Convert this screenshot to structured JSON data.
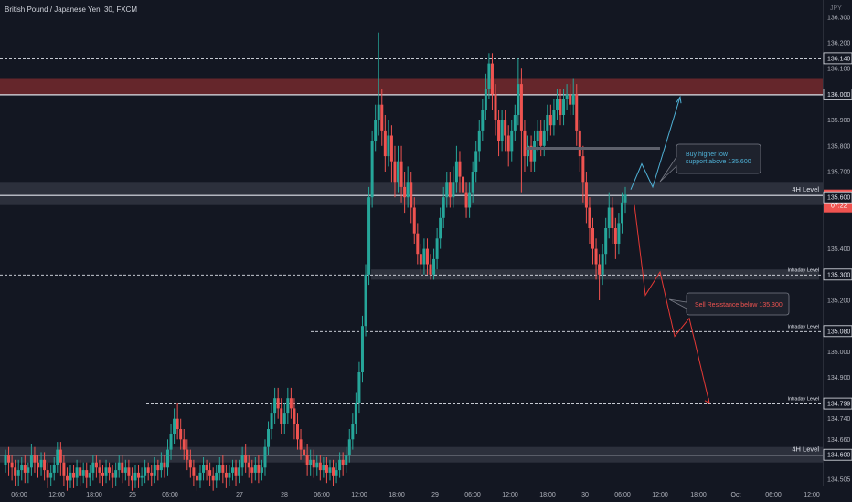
{
  "header": {
    "title": "British Pound / Japanese Yen, 30, FXCM",
    "currency": "JPY"
  },
  "colors": {
    "background": "#131722",
    "up": "#26a69a",
    "down": "#ef5350",
    "zone": "#363a45",
    "resistance_zone": "#7a2a2e",
    "bull_projection": "#4fb1d6",
    "bear_projection": "#e53935",
    "axis_text": "#b2b5be"
  },
  "chart_data": {
    "type": "candlestick",
    "title": "British Pound / Japanese Yen, 30, FXCM",
    "ylim": [
      134.5,
      136.32
    ],
    "x_tick_labels": [
      "06:00",
      "12:00",
      "18:00",
      "25",
      "06:00",
      "27",
      "28",
      "06:00",
      "12:00",
      "18:00",
      "29",
      "06:00",
      "12:00",
      "18:00",
      "30",
      "06:00",
      "12:00",
      "18:00",
      "Oct",
      "06:00",
      "12:00"
    ],
    "y_tick_labels": [
      "136.300",
      "136.200",
      "136.100",
      "135.900",
      "135.800",
      "135.700",
      "135.400",
      "135.200",
      "135.000",
      "134.900",
      "134.740",
      "134.660",
      "134.505"
    ],
    "price_labels": [
      {
        "value": 136.14,
        "text": "136.140",
        "style": "boxed"
      },
      {
        "value": 136.0,
        "text": "136.000",
        "style": "boxed"
      },
      {
        "value": 135.609,
        "text": "135.609",
        "countdown": "07:22",
        "style": "current"
      },
      {
        "value": 135.6,
        "text": "135.600",
        "style": "boxed"
      },
      {
        "value": 135.3,
        "text": "135.300",
        "style": "boxed"
      },
      {
        "value": 135.08,
        "text": "135.080",
        "style": "boxed"
      },
      {
        "value": 134.799,
        "text": "134.799",
        "style": "boxed"
      },
      {
        "value": 134.6,
        "text": "134.600",
        "style": "boxed"
      }
    ],
    "levels": [
      {
        "value": 136.14,
        "style": "dashed",
        "label": ""
      },
      {
        "value": 136.0,
        "style": "solid",
        "label": ""
      },
      {
        "value": 135.609,
        "style": "solid",
        "label": "4H Level"
      },
      {
        "value": 135.3,
        "style": "dashed",
        "label": "Intraday Level"
      },
      {
        "value": 135.08,
        "style": "dashed",
        "label": "Intraday Level"
      },
      {
        "value": 134.799,
        "style": "dashed",
        "label": "Intraday Level"
      },
      {
        "value": 134.6,
        "style": "solid",
        "label": "4H Level"
      }
    ],
    "zones": [
      {
        "from": 136.0,
        "to": 136.06,
        "kind": "resistance"
      },
      {
        "from": 135.57,
        "to": 135.66,
        "kind": "4h"
      },
      {
        "from": 135.28,
        "to": 135.32,
        "kind": "intraday"
      },
      {
        "from": 134.57,
        "to": 134.63,
        "kind": "4h"
      }
    ],
    "annotations": [
      {
        "text": "Buy higher low support above 135.600",
        "lines": [
          "Buy higher low",
          "support above 135.600"
        ],
        "color": "#4fb1d6"
      },
      {
        "text": "Sell Resistance below 135.300",
        "lines": [
          "Sell Resistance below 135.300"
        ],
        "color": "#ef5350"
      }
    ],
    "projections": {
      "bull": [
        [
          135.63,
          0
        ],
        [
          135.73,
          1
        ],
        [
          135.64,
          2
        ],
        [
          135.99,
          3
        ]
      ],
      "bear": [
        [
          135.57,
          0
        ],
        [
          135.22,
          1
        ],
        [
          135.31,
          2
        ],
        [
          135.06,
          3
        ],
        [
          135.13,
          4
        ],
        [
          134.8,
          5
        ]
      ]
    },
    "candles": [
      [
        134.56,
        134.6,
        134.53,
        134.62
      ],
      [
        134.6,
        134.57,
        134.52,
        134.63
      ],
      [
        134.57,
        134.55,
        134.5,
        134.6
      ],
      [
        134.55,
        134.52,
        134.48,
        134.58
      ],
      [
        134.52,
        134.54,
        134.48,
        134.58
      ],
      [
        134.54,
        134.56,
        134.5,
        134.59
      ],
      [
        134.56,
        134.53,
        134.49,
        134.6
      ],
      [
        134.53,
        134.55,
        134.49,
        134.57
      ],
      [
        134.55,
        134.6,
        134.52,
        134.64
      ],
      [
        134.6,
        134.57,
        134.53,
        134.63
      ],
      [
        134.57,
        134.55,
        134.51,
        134.6
      ],
      [
        134.55,
        134.58,
        134.52,
        134.61
      ],
      [
        134.58,
        134.54,
        134.5,
        134.61
      ],
      [
        134.54,
        134.51,
        134.47,
        134.57
      ],
      [
        134.51,
        134.53,
        134.48,
        134.56
      ],
      [
        134.53,
        134.56,
        134.5,
        134.59
      ],
      [
        134.56,
        134.62,
        134.53,
        134.65
      ],
      [
        134.62,
        134.57,
        134.52,
        134.65
      ],
      [
        134.57,
        134.52,
        134.48,
        134.6
      ],
      [
        134.52,
        134.5,
        134.46,
        134.55
      ],
      [
        134.5,
        134.53,
        134.47,
        134.56
      ],
      [
        134.53,
        134.51,
        134.47,
        134.56
      ],
      [
        134.51,
        134.55,
        134.48,
        134.58
      ],
      [
        134.55,
        134.52,
        134.48,
        134.58
      ],
      [
        134.52,
        134.54,
        134.49,
        134.57
      ],
      [
        134.54,
        134.51,
        134.47,
        134.57
      ],
      [
        134.51,
        134.53,
        134.48,
        134.56
      ],
      [
        134.53,
        134.57,
        134.5,
        134.6
      ],
      [
        134.57,
        134.55,
        134.51,
        134.6
      ],
      [
        134.55,
        134.53,
        134.49,
        134.58
      ],
      [
        134.53,
        134.52,
        134.48,
        134.56
      ],
      [
        134.52,
        134.55,
        134.49,
        134.58
      ],
      [
        134.55,
        134.53,
        134.5,
        134.57
      ],
      [
        134.53,
        134.51,
        134.47,
        134.56
      ],
      [
        134.51,
        134.54,
        134.48,
        134.57
      ],
      [
        134.54,
        134.57,
        134.51,
        134.6
      ],
      [
        134.57,
        134.53,
        134.49,
        134.6
      ],
      [
        134.53,
        134.55,
        134.5,
        134.58
      ],
      [
        134.55,
        134.52,
        134.48,
        134.58
      ],
      [
        134.52,
        134.5,
        134.46,
        134.55
      ],
      [
        134.5,
        134.53,
        134.47,
        134.56
      ],
      [
        134.53,
        134.51,
        134.47,
        134.56
      ],
      [
        134.51,
        134.52,
        134.48,
        134.55
      ],
      [
        134.52,
        134.55,
        134.49,
        134.58
      ],
      [
        134.55,
        134.53,
        134.5,
        134.57
      ],
      [
        134.53,
        134.52,
        134.48,
        134.56
      ],
      [
        134.52,
        134.56,
        134.49,
        134.59
      ],
      [
        134.56,
        134.54,
        134.5,
        134.58
      ],
      [
        134.54,
        134.57,
        134.51,
        134.61
      ],
      [
        134.57,
        134.55,
        134.51,
        134.6
      ],
      [
        134.55,
        134.62,
        134.52,
        134.66
      ],
      [
        134.62,
        134.68,
        134.58,
        134.72
      ],
      [
        134.68,
        134.74,
        134.64,
        134.78
      ],
      [
        134.74,
        134.7,
        134.66,
        134.8
      ],
      [
        134.7,
        134.66,
        134.62,
        134.74
      ],
      [
        134.66,
        134.62,
        134.58,
        134.7
      ],
      [
        134.62,
        134.58,
        134.54,
        134.66
      ],
      [
        134.58,
        134.55,
        134.51,
        134.62
      ],
      [
        134.55,
        134.52,
        134.48,
        134.58
      ],
      [
        134.52,
        134.5,
        134.46,
        134.55
      ],
      [
        134.5,
        134.53,
        134.47,
        134.56
      ],
      [
        134.53,
        134.56,
        134.5,
        134.59
      ],
      [
        134.56,
        134.54,
        134.5,
        134.58
      ],
      [
        134.54,
        134.52,
        134.48,
        134.57
      ],
      [
        134.52,
        134.5,
        134.46,
        134.55
      ],
      [
        134.5,
        134.53,
        134.47,
        134.56
      ],
      [
        134.53,
        134.56,
        134.5,
        134.59
      ],
      [
        134.56,
        134.53,
        134.49,
        134.6
      ],
      [
        134.53,
        134.51,
        134.47,
        134.56
      ],
      [
        134.51,
        134.53,
        134.48,
        134.56
      ],
      [
        134.53,
        134.55,
        134.5,
        134.58
      ],
      [
        134.55,
        134.52,
        134.48,
        134.58
      ],
      [
        134.52,
        134.55,
        134.49,
        134.58
      ],
      [
        134.55,
        134.6,
        134.52,
        134.63
      ],
      [
        134.6,
        134.57,
        134.53,
        134.64
      ],
      [
        134.57,
        134.55,
        134.51,
        134.6
      ],
      [
        134.55,
        134.53,
        134.49,
        134.58
      ],
      [
        134.53,
        134.56,
        134.5,
        134.59
      ],
      [
        134.56,
        134.53,
        134.49,
        134.6
      ],
      [
        134.53,
        134.55,
        134.5,
        134.58
      ],
      [
        134.55,
        134.63,
        134.52,
        134.66
      ],
      [
        134.63,
        134.7,
        134.6,
        134.73
      ],
      [
        134.7,
        134.76,
        134.66,
        134.8
      ],
      [
        134.76,
        134.82,
        134.72,
        134.86
      ],
      [
        134.82,
        134.78,
        134.74,
        134.86
      ],
      [
        134.78,
        134.72,
        134.68,
        134.82
      ],
      [
        134.72,
        134.76,
        134.68,
        134.8
      ],
      [
        134.76,
        134.82,
        134.72,
        134.86
      ],
      [
        134.82,
        134.78,
        134.74,
        134.86
      ],
      [
        134.78,
        134.72,
        134.66,
        134.82
      ],
      [
        134.72,
        134.66,
        134.62,
        134.76
      ],
      [
        134.66,
        134.62,
        134.58,
        134.7
      ],
      [
        134.62,
        134.6,
        134.56,
        134.65
      ],
      [
        134.6,
        134.56,
        134.52,
        134.64
      ],
      [
        134.56,
        134.58,
        134.52,
        134.62
      ],
      [
        134.58,
        134.55,
        134.51,
        134.62
      ],
      [
        134.55,
        134.57,
        134.52,
        134.6
      ],
      [
        134.57,
        134.54,
        134.5,
        134.6
      ],
      [
        134.54,
        134.56,
        134.51,
        134.59
      ],
      [
        134.56,
        134.53,
        134.49,
        134.59
      ],
      [
        134.53,
        134.55,
        134.5,
        134.58
      ],
      [
        134.55,
        134.52,
        134.48,
        134.58
      ],
      [
        134.52,
        134.54,
        134.49,
        134.57
      ],
      [
        134.54,
        134.58,
        134.51,
        134.61
      ],
      [
        134.58,
        134.56,
        134.52,
        134.61
      ],
      [
        134.56,
        134.6,
        134.53,
        134.63
      ],
      [
        134.6,
        134.66,
        134.57,
        134.7
      ],
      [
        134.66,
        134.72,
        134.62,
        134.76
      ],
      [
        134.72,
        134.8,
        134.68,
        134.84
      ],
      [
        134.8,
        134.92,
        134.76,
        134.96
      ],
      [
        134.92,
        135.1,
        134.88,
        135.14
      ],
      [
        135.1,
        135.3,
        135.06,
        135.34
      ],
      [
        135.3,
        135.6,
        135.26,
        135.64
      ],
      [
        135.6,
        135.82,
        135.56,
        135.86
      ],
      [
        135.82,
        135.9,
        135.78,
        135.96
      ],
      [
        135.9,
        135.96,
        135.84,
        136.24
      ],
      [
        135.96,
        135.86,
        135.8,
        136.02
      ],
      [
        135.86,
        135.76,
        135.7,
        135.92
      ],
      [
        135.76,
        135.84,
        135.72,
        135.9
      ],
      [
        135.84,
        135.74,
        135.66,
        135.88
      ],
      [
        135.74,
        135.66,
        135.6,
        135.8
      ],
      [
        135.66,
        135.74,
        135.62,
        135.8
      ],
      [
        135.74,
        135.64,
        135.58,
        135.8
      ],
      [
        135.64,
        135.6,
        135.54,
        135.7
      ],
      [
        135.6,
        135.66,
        135.56,
        135.72
      ],
      [
        135.66,
        135.56,
        135.5,
        135.7
      ],
      [
        135.56,
        135.46,
        135.42,
        135.6
      ],
      [
        135.46,
        135.38,
        135.34,
        135.5
      ],
      [
        135.38,
        135.34,
        135.3,
        135.42
      ],
      [
        135.34,
        135.4,
        135.3,
        135.44
      ],
      [
        135.4,
        135.34,
        135.3,
        135.44
      ],
      [
        135.34,
        135.3,
        135.28,
        135.38
      ],
      [
        135.3,
        135.36,
        135.28,
        135.4
      ],
      [
        135.36,
        135.44,
        135.32,
        135.48
      ],
      [
        135.44,
        135.52,
        135.4,
        135.56
      ],
      [
        135.52,
        135.6,
        135.48,
        135.64
      ],
      [
        135.6,
        135.66,
        135.56,
        135.7
      ],
      [
        135.66,
        135.6,
        135.56,
        135.7
      ],
      [
        135.6,
        135.66,
        135.56,
        135.72
      ],
      [
        135.66,
        135.74,
        135.62,
        135.8
      ],
      [
        135.74,
        135.68,
        135.62,
        135.78
      ],
      [
        135.68,
        135.62,
        135.58,
        135.72
      ],
      [
        135.62,
        135.56,
        135.52,
        135.66
      ],
      [
        135.56,
        135.62,
        135.52,
        135.66
      ],
      [
        135.62,
        135.7,
        135.58,
        135.74
      ],
      [
        135.7,
        135.78,
        135.66,
        135.82
      ],
      [
        135.78,
        135.86,
        135.74,
        135.9
      ],
      [
        135.86,
        135.94,
        135.82,
        135.98
      ],
      [
        135.94,
        136.02,
        135.9,
        136.08
      ],
      [
        136.02,
        136.12,
        135.98,
        136.16
      ],
      [
        136.12,
        136.0,
        135.94,
        136.16
      ],
      [
        136.0,
        135.9,
        135.84,
        136.04
      ],
      [
        135.9,
        135.82,
        135.76,
        135.94
      ],
      [
        135.82,
        135.9,
        135.78,
        135.94
      ],
      [
        135.9,
        135.84,
        135.78,
        135.94
      ],
      [
        135.84,
        135.78,
        135.72,
        135.88
      ],
      [
        135.78,
        135.86,
        135.74,
        135.9
      ],
      [
        135.86,
        135.92,
        135.82,
        135.96
      ],
      [
        135.92,
        136.04,
        135.88,
        136.14
      ],
      [
        136.04,
        135.86,
        135.62,
        136.1
      ],
      [
        135.86,
        135.76,
        135.7,
        135.9
      ],
      [
        135.76,
        135.8,
        135.72,
        135.84
      ],
      [
        135.8,
        135.74,
        135.7,
        135.84
      ],
      [
        135.74,
        135.82,
        135.7,
        135.86
      ],
      [
        135.82,
        135.86,
        135.78,
        135.9
      ],
      [
        135.86,
        135.8,
        135.76,
        135.9
      ],
      [
        135.8,
        135.86,
        135.76,
        135.9
      ],
      [
        135.86,
        135.92,
        135.82,
        135.96
      ],
      [
        135.92,
        135.88,
        135.84,
        135.96
      ],
      [
        135.88,
        135.94,
        135.84,
        135.98
      ],
      [
        135.94,
        135.98,
        135.9,
        136.02
      ],
      [
        135.98,
        135.92,
        135.88,
        136.02
      ],
      [
        135.92,
        135.98,
        135.88,
        136.02
      ],
      [
        135.98,
        136.0,
        135.94,
        136.04
      ],
      [
        136.0,
        135.96,
        135.92,
        136.04
      ],
      [
        135.96,
        136.0,
        135.92,
        136.06
      ],
      [
        136.0,
        135.86,
        135.8,
        136.04
      ],
      [
        135.86,
        135.76,
        135.7,
        135.9
      ],
      [
        135.76,
        135.66,
        135.58,
        135.8
      ],
      [
        135.66,
        135.56,
        135.5,
        135.7
      ],
      [
        135.56,
        135.48,
        135.42,
        135.6
      ],
      [
        135.48,
        135.4,
        135.34,
        135.52
      ],
      [
        135.4,
        135.34,
        135.28,
        135.44
      ],
      [
        135.34,
        135.3,
        135.2,
        135.38
      ],
      [
        135.3,
        135.38,
        135.26,
        135.42
      ],
      [
        135.38,
        135.48,
        135.34,
        135.52
      ],
      [
        135.48,
        135.56,
        135.44,
        135.62
      ],
      [
        135.56,
        135.48,
        135.42,
        135.6
      ],
      [
        135.48,
        135.42,
        135.36,
        135.52
      ],
      [
        135.42,
        135.5,
        135.38,
        135.54
      ],
      [
        135.5,
        135.58,
        135.46,
        135.62
      ],
      [
        135.58,
        135.61,
        135.54,
        135.64
      ]
    ]
  }
}
